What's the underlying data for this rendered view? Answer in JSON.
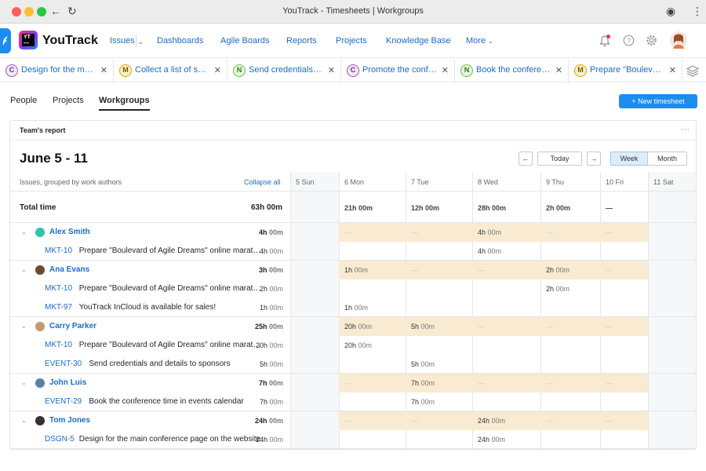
{
  "window": {
    "title": "YouTrack - Timesheets | Workgroups"
  },
  "app": {
    "name": "YouTrack"
  },
  "nav": {
    "items": [
      "Issues",
      "Dashboards",
      "Agile Boards",
      "Reports",
      "Projects",
      "Knowledge Base",
      "More"
    ]
  },
  "tabs": [
    {
      "badge": "C",
      "label": "Design for the main conference page on the website"
    },
    {
      "badge": "M",
      "label": "Collect a list of speakers"
    },
    {
      "badge": "N",
      "label": "Send credentials and details to sponsors"
    },
    {
      "badge": "C",
      "label": "Promote the conference"
    },
    {
      "badge": "N",
      "label": "Book the conference time in events calendar"
    },
    {
      "badge": "M",
      "label": "Prepare \"Boulevard of Agile Dreams\""
    }
  ],
  "subtabs": [
    "People",
    "Projects",
    "Workgroups"
  ],
  "new_timesheet_label": "New timesheet",
  "report": {
    "title": "Team's report",
    "range": "June 5 - 11",
    "today_label": "Today",
    "week_label": "Week",
    "month_label": "Month",
    "grouped_by": "Issues, grouped by work authors",
    "collapse_label": "Collapse all",
    "days": [
      "5 Sun",
      "6 Mon",
      "7 Tue",
      "8 Wed",
      "9 Thu",
      "10 Fri",
      "11 Sat"
    ],
    "total": {
      "label": "Total time",
      "value_h": "63h",
      "value_m": "00m",
      "days": [
        {
          "h": "",
          "m": ""
        },
        {
          "h": "21h",
          "m": "00m"
        },
        {
          "h": "12h",
          "m": "00m"
        },
        {
          "h": "28h",
          "m": "00m"
        },
        {
          "h": "2h",
          "m": "00m"
        },
        {
          "h": "—",
          "m": ""
        },
        {
          "h": "",
          "m": ""
        }
      ]
    },
    "authors": [
      {
        "name": "Alex Smith",
        "total_h": "4h",
        "total_m": "00m",
        "days": [
          {
            "h": "",
            "m": ""
          },
          {
            "h": "—",
            "m": ""
          },
          {
            "h": "—",
            "m": ""
          },
          {
            "h": "4h",
            "m": "00m"
          },
          {
            "h": "—",
            "m": ""
          },
          {
            "h": "—",
            "m": ""
          },
          {
            "h": "",
            "m": ""
          }
        ],
        "issues": [
          {
            "id": "MKT-10",
            "summary": "Prepare \"Boulevard of Agile Dreams\" online marathon",
            "total_h": "4h",
            "total_m": "00m",
            "days": [
              {
                "h": "",
                "m": ""
              },
              {
                "h": "",
                "m": ""
              },
              {
                "h": "",
                "m": ""
              },
              {
                "h": "4h",
                "m": "00m"
              },
              {
                "h": "",
                "m": ""
              },
              {
                "h": "",
                "m": ""
              },
              {
                "h": "",
                "m": ""
              }
            ]
          }
        ]
      },
      {
        "name": "Ana Evans",
        "total_h": "3h",
        "total_m": "00m",
        "days": [
          {
            "h": "",
            "m": ""
          },
          {
            "h": "1h",
            "m": "00m"
          },
          {
            "h": "—",
            "m": ""
          },
          {
            "h": "—",
            "m": ""
          },
          {
            "h": "2h",
            "m": "00m"
          },
          {
            "h": "—",
            "m": ""
          },
          {
            "h": "",
            "m": ""
          }
        ],
        "issues": [
          {
            "id": "MKT-10",
            "summary": "Prepare \"Boulevard of Agile Dreams\" online marathon",
            "total_h": "2h",
            "total_m": "00m",
            "days": [
              {
                "h": "",
                "m": ""
              },
              {
                "h": "",
                "m": ""
              },
              {
                "h": "",
                "m": ""
              },
              {
                "h": "",
                "m": ""
              },
              {
                "h": "2h",
                "m": "00m"
              },
              {
                "h": "",
                "m": ""
              },
              {
                "h": "",
                "m": ""
              }
            ]
          },
          {
            "id": "MKT-97",
            "summary": "YouTrack InCloud is available for sales!",
            "total_h": "1h",
            "total_m": "00m",
            "days": [
              {
                "h": "",
                "m": ""
              },
              {
                "h": "1h",
                "m": "00m"
              },
              {
                "h": "",
                "m": ""
              },
              {
                "h": "",
                "m": ""
              },
              {
                "h": "",
                "m": ""
              },
              {
                "h": "",
                "m": ""
              },
              {
                "h": "",
                "m": ""
              }
            ]
          }
        ]
      },
      {
        "name": "Carry Parker",
        "total_h": "25h",
        "total_m": "00m",
        "days": [
          {
            "h": "",
            "m": ""
          },
          {
            "h": "20h",
            "m": "00m"
          },
          {
            "h": "5h",
            "m": "00m"
          },
          {
            "h": "—",
            "m": ""
          },
          {
            "h": "—",
            "m": ""
          },
          {
            "h": "—",
            "m": ""
          },
          {
            "h": "",
            "m": ""
          }
        ],
        "issues": [
          {
            "id": "MKT-10",
            "summary": "Prepare \"Boulevard of Agile Dreams\" online marathon",
            "total_h": "20h",
            "total_m": "00m",
            "days": [
              {
                "h": "",
                "m": ""
              },
              {
                "h": "20h",
                "m": "00m"
              },
              {
                "h": "",
                "m": ""
              },
              {
                "h": "",
                "m": ""
              },
              {
                "h": "",
                "m": ""
              },
              {
                "h": "",
                "m": ""
              },
              {
                "h": "",
                "m": ""
              }
            ]
          },
          {
            "id": "EVENT-30",
            "summary": "Send credentials and details to sponsors",
            "total_h": "5h",
            "total_m": "00m",
            "days": [
              {
                "h": "",
                "m": ""
              },
              {
                "h": "",
                "m": ""
              },
              {
                "h": "5h",
                "m": "00m"
              },
              {
                "h": "",
                "m": ""
              },
              {
                "h": "",
                "m": ""
              },
              {
                "h": "",
                "m": ""
              },
              {
                "h": "",
                "m": ""
              }
            ]
          }
        ]
      },
      {
        "name": "John Luis",
        "total_h": "7h",
        "total_m": "00m",
        "days": [
          {
            "h": "",
            "m": ""
          },
          {
            "h": "—",
            "m": ""
          },
          {
            "h": "7h",
            "m": "00m"
          },
          {
            "h": "—",
            "m": ""
          },
          {
            "h": "—",
            "m": ""
          },
          {
            "h": "—",
            "m": ""
          },
          {
            "h": "",
            "m": ""
          }
        ],
        "issues": [
          {
            "id": "EVENT-29",
            "summary": "Book the conference time in events calendar",
            "total_h": "7h",
            "total_m": "00m",
            "days": [
              {
                "h": "",
                "m": ""
              },
              {
                "h": "",
                "m": ""
              },
              {
                "h": "7h",
                "m": "00m"
              },
              {
                "h": "",
                "m": ""
              },
              {
                "h": "",
                "m": ""
              },
              {
                "h": "",
                "m": ""
              },
              {
                "h": "",
                "m": ""
              }
            ]
          }
        ]
      },
      {
        "name": "Tom Jones",
        "total_h": "24h",
        "total_m": "00m",
        "days": [
          {
            "h": "",
            "m": ""
          },
          {
            "h": "—",
            "m": ""
          },
          {
            "h": "—",
            "m": ""
          },
          {
            "h": "24h",
            "m": "00m"
          },
          {
            "h": "—",
            "m": ""
          },
          {
            "h": "—",
            "m": ""
          },
          {
            "h": "",
            "m": ""
          }
        ],
        "issues": [
          {
            "id": "DSGN-5",
            "summary": "Design for the main conference page on the website",
            "total_h": "24h",
            "total_m": "00m",
            "days": [
              {
                "h": "",
                "m": ""
              },
              {
                "h": "",
                "m": ""
              },
              {
                "h": "",
                "m": ""
              },
              {
                "h": "24h",
                "m": "00m"
              },
              {
                "h": "",
                "m": ""
              },
              {
                "h": "",
                "m": ""
              },
              {
                "h": "",
                "m": ""
              }
            ]
          }
        ]
      }
    ]
  },
  "colors": {
    "accent": "#1b8cf0",
    "link": "#1a6dc7",
    "highlight": "#f9ebd1",
    "weekend": "#f6f7f9"
  },
  "icons": {
    "back": "arrow-left-icon",
    "reload": "reload-icon",
    "extensions": "puzzle-icon",
    "menu": "kebab-icon",
    "notifications": "bell-icon",
    "help": "help-icon",
    "settings": "gear-icon",
    "layers": "layers-icon"
  }
}
